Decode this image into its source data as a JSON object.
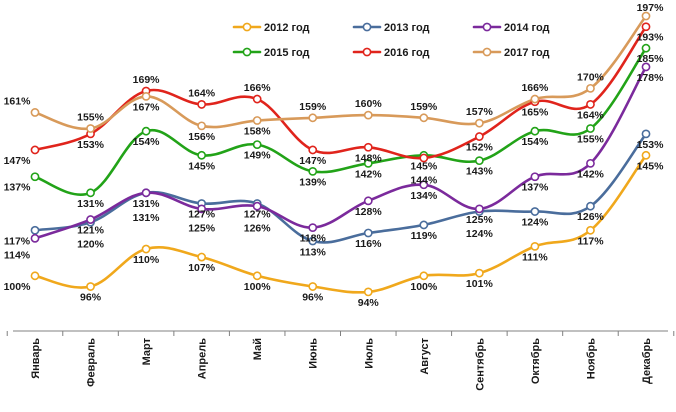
{
  "chart_data": {
    "type": "line",
    "title": "",
    "xlabel": "",
    "ylabel": "",
    "ylim": [
      85,
      200
    ],
    "grid": false,
    "legend_position": "top-right",
    "categories": [
      "Январь",
      "Февраль",
      "Март",
      "Апрель",
      "Май",
      "Июнь",
      "Июль",
      "Август",
      "Сентябрь",
      "Октябрь",
      "Ноябрь",
      "Декабрь"
    ],
    "series": [
      {
        "name": "2012 год",
        "color": "#f0a81c",
        "values": [
          100,
          96,
          110,
          107,
          100,
          96,
          94,
          100,
          101,
          111,
          117,
          145
        ]
      },
      {
        "name": "2013 год",
        "color": "#4a6d9c",
        "values": [
          117,
          120,
          131,
          127,
          127,
          113,
          116,
          119,
          124,
          124,
          126,
          153
        ]
      },
      {
        "name": "2014 год",
        "color": "#7b2a9c",
        "values": [
          114,
          121,
          131,
          125,
          126,
          118,
          128,
          134,
          125,
          137,
          142,
          178
        ]
      },
      {
        "name": "2015 год",
        "color": "#22a318",
        "values": [
          137,
          131,
          154,
          145,
          149,
          139,
          142,
          145,
          143,
          154,
          155,
          185
        ]
      },
      {
        "name": "2016 год",
        "color": "#e0241c",
        "values": [
          147,
          153,
          169,
          164,
          166,
          147,
          148,
          144,
          152,
          165,
          164,
          193
        ]
      },
      {
        "name": "2017 год",
        "color": "#d89a5a",
        "values": [
          161,
          155,
          167,
          156,
          158,
          159,
          160,
          159,
          157,
          166,
          170,
          197
        ]
      }
    ],
    "value_suffix": "%"
  }
}
